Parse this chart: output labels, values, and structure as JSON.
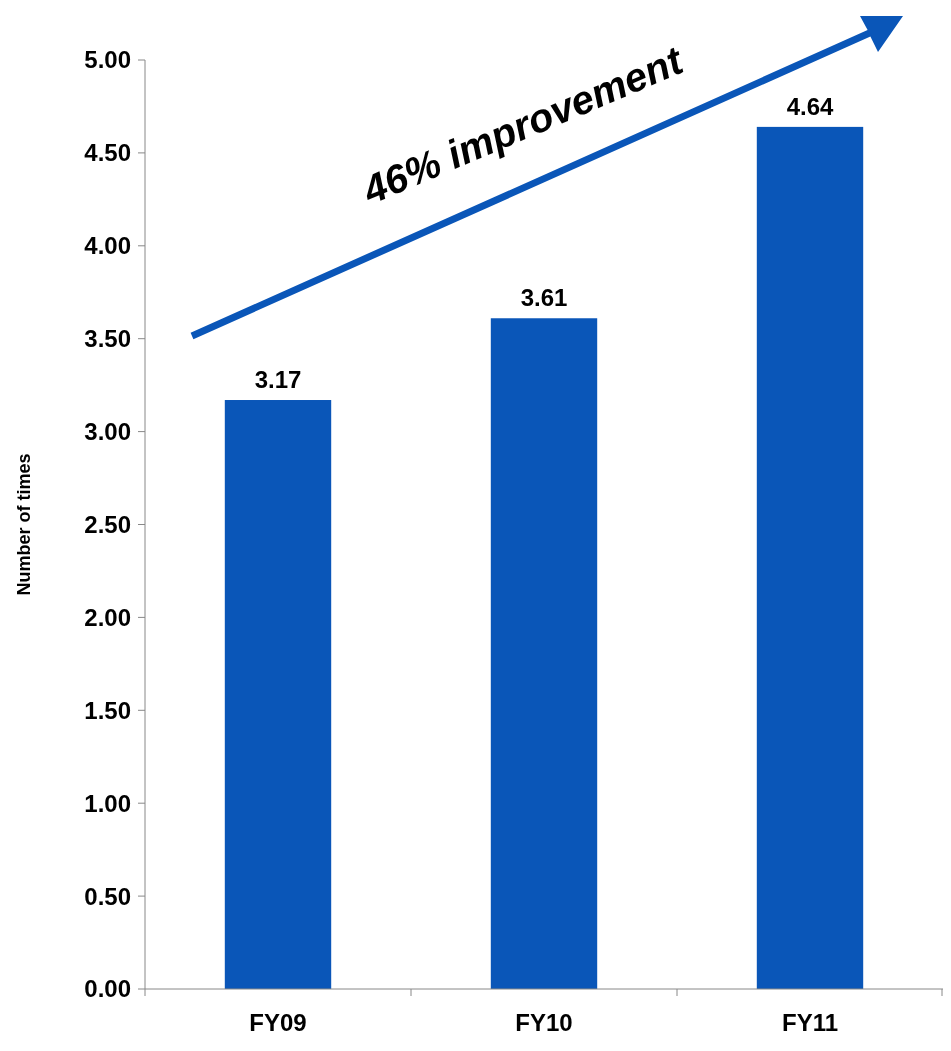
{
  "chart_data": {
    "type": "bar",
    "ylabel": "Number of times",
    "categories": [
      "FY09",
      "FY10",
      "FY11"
    ],
    "values": [
      3.17,
      3.61,
      4.64
    ],
    "color": "#0a56b8",
    "ylim": [
      0,
      5
    ],
    "yticks": [
      {
        "value": 0,
        "label": "0.00"
      },
      {
        "value": 0.5,
        "label": "0.50"
      },
      {
        "value": 1,
        "label": "1.00"
      },
      {
        "value": 1.5,
        "label": "1.50"
      },
      {
        "value": 2,
        "label": "2.00"
      },
      {
        "value": 2.5,
        "label": "2.50"
      },
      {
        "value": 3,
        "label": "3.00"
      },
      {
        "value": 3.5,
        "label": "3.50"
      },
      {
        "value": 4,
        "label": "4.00"
      },
      {
        "value": 4.5,
        "label": "4.50"
      },
      {
        "value": 5,
        "label": "5.00"
      }
    ],
    "data_labels": true,
    "grid": false,
    "annotations": [
      "46% improvement"
    ]
  }
}
